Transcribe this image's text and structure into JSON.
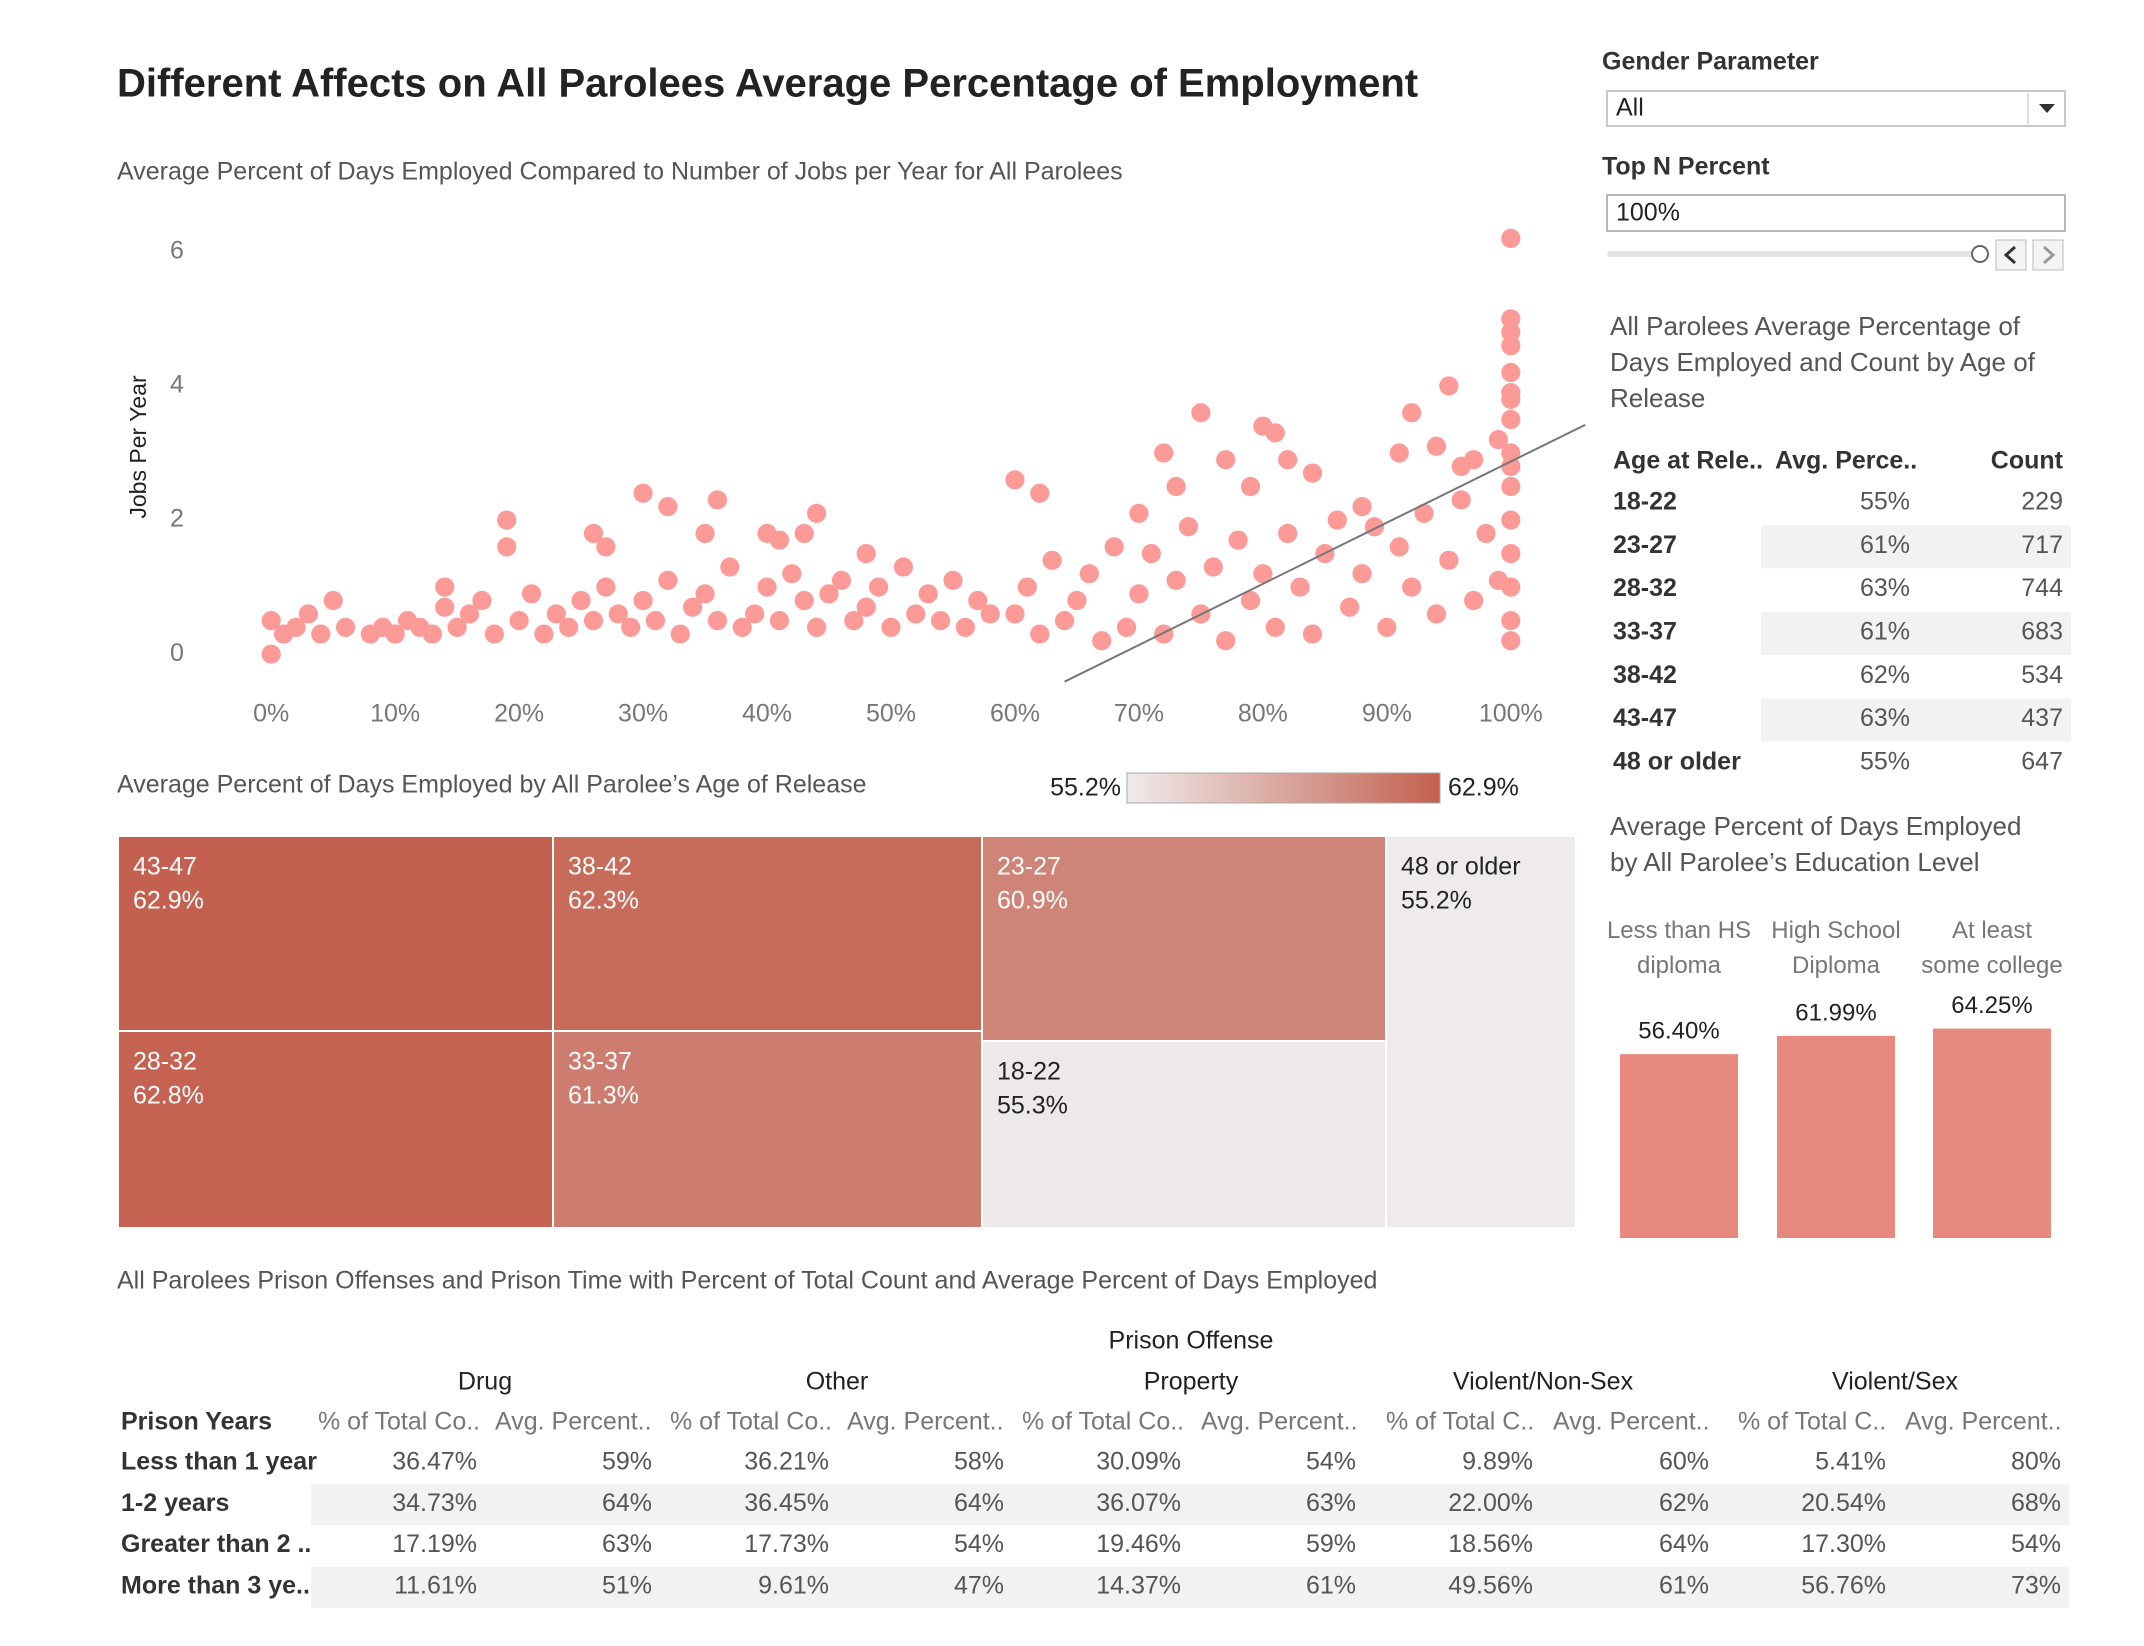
{
  "title": "Different Affects on All Parolees Average Percentage of Employment",
  "filters": {
    "gender": {
      "label": "Gender Parameter",
      "value": "All"
    },
    "top_n": {
      "label": "Top N Percent",
      "value": "100%"
    }
  },
  "chart_data": [
    {
      "type": "scatter",
      "title": "Average Percent of Days Employed Compared to Number of Jobs per Year for All Parolees",
      "ylabel": "Jobs Per Year",
      "color": "#fc9a97",
      "grid": false,
      "x": [
        0,
        0,
        1,
        2,
        3,
        4,
        5,
        6,
        8,
        9,
        10,
        11,
        12,
        13,
        14,
        14,
        15,
        16,
        17,
        18,
        20,
        21,
        22,
        23,
        24,
        25,
        26,
        27,
        28,
        29,
        30,
        31,
        32,
        33,
        34,
        35,
        36,
        37,
        38,
        39,
        40,
        41,
        42,
        43,
        44,
        45,
        46,
        47,
        48,
        49,
        50,
        51,
        52,
        53,
        54,
        55,
        56,
        57,
        58,
        19,
        19,
        26,
        27,
        30,
        32,
        36,
        35,
        40,
        41,
        43,
        44,
        48,
        60,
        62,
        70,
        72,
        73,
        75,
        77,
        79,
        80,
        81,
        82,
        84,
        88,
        91,
        92,
        94,
        95,
        96,
        99,
        97,
        60,
        61,
        62,
        63,
        64,
        65,
        66,
        67,
        68,
        69,
        70,
        71,
        72,
        73,
        74,
        75,
        76,
        77,
        78,
        79,
        80,
        81,
        82,
        83,
        84,
        85,
        86,
        87,
        88,
        89,
        90,
        91,
        92,
        93,
        94,
        95,
        96,
        97,
        98,
        99,
        100,
        100,
        100,
        100,
        100,
        100,
        100,
        100,
        100,
        100,
        100,
        100,
        100,
        100,
        100,
        100
      ],
      "values": [
        0.5,
        0.0,
        0.3,
        0.4,
        0.6,
        0.3,
        0.8,
        0.4,
        0.3,
        0.4,
        0.3,
        0.5,
        0.4,
        0.3,
        0.7,
        1.0,
        0.4,
        0.6,
        0.8,
        0.3,
        0.5,
        0.9,
        0.3,
        0.6,
        0.4,
        0.8,
        0.5,
        1.0,
        0.6,
        0.4,
        0.8,
        0.5,
        1.1,
        0.3,
        0.7,
        0.9,
        0.5,
        1.3,
        0.4,
        0.6,
        1.0,
        0.5,
        1.2,
        0.8,
        0.4,
        0.9,
        1.1,
        0.5,
        0.7,
        1.0,
        0.4,
        1.3,
        0.6,
        0.9,
        0.5,
        1.1,
        0.4,
        0.8,
        0.6,
        2.0,
        1.6,
        1.8,
        1.6,
        2.4,
        2.2,
        2.3,
        1.8,
        1.8,
        1.7,
        1.8,
        2.1,
        1.5,
        2.6,
        2.4,
        2.1,
        3.0,
        2.5,
        3.6,
        2.9,
        2.5,
        3.4,
        3.3,
        2.9,
        2.7,
        2.2,
        3.0,
        3.6,
        3.1,
        4.0,
        2.8,
        3.2,
        2.9,
        0.6,
        1.0,
        0.3,
        1.4,
        0.5,
        0.8,
        1.2,
        0.2,
        1.6,
        0.4,
        0.9,
        1.5,
        0.3,
        1.1,
        1.9,
        0.6,
        1.3,
        0.2,
        1.7,
        0.8,
        1.2,
        0.4,
        1.8,
        1.0,
        0.3,
        1.5,
        2.0,
        0.7,
        1.2,
        1.9,
        0.4,
        1.6,
        1.0,
        2.1,
        0.6,
        1.4,
        2.3,
        0.8,
        1.8,
        1.1,
        6.2,
        5.0,
        4.8,
        4.6,
        4.2,
        3.8,
        3.5,
        3.0,
        2.5,
        2.0,
        1.5,
        1.0,
        0.5,
        0.2,
        2.8,
        3.9
      ],
      "trend_line": {
        "x": [
          64,
          106
        ],
        "values": [
          -0.41,
          3.42
        ],
        "color": "#777777"
      },
      "xlim": [
        -3,
        103
      ],
      "xticks": [
        {
          "value": 0,
          "label": "0%"
        },
        {
          "value": 10,
          "label": "10%"
        },
        {
          "value": 20,
          "label": "20%"
        },
        {
          "value": 30,
          "label": "30%"
        },
        {
          "value": 40,
          "label": "40%"
        },
        {
          "value": 50,
          "label": "50%"
        },
        {
          "value": 60,
          "label": "60%"
        },
        {
          "value": 70,
          "label": "70%"
        },
        {
          "value": 80,
          "label": "80%"
        },
        {
          "value": 90,
          "label": "90%"
        },
        {
          "value": 100,
          "label": "100%"
        }
      ],
      "ylim": [
        -0.4,
        6.4
      ],
      "yticks": [
        0,
        2,
        4,
        6
      ]
    },
    {
      "type": "treemap",
      "title": "Average Percent of Days Employed by All Parolee’s Age of Release",
      "categories": [
        "43-47",
        "28-32",
        "38-42",
        "33-37",
        "23-27",
        "18-22",
        "48 or older"
      ],
      "values": [
        62.9,
        62.8,
        62.3,
        61.3,
        60.9,
        55.3,
        55.2
      ],
      "value_labels": [
        "62.9%",
        "62.8%",
        "62.3%",
        "61.3%",
        "60.9%",
        "55.3%",
        "55.2%"
      ],
      "color_range": [
        {
          "value": 55.2,
          "label": "55.2%"
        },
        {
          "value": 62.9,
          "label": "62.9%"
        }
      ],
      "colors": [
        "#efebeb",
        "#c4604f"
      ]
    },
    {
      "type": "bar",
      "title": "Average Percent of Days Employed\nby All Parolee’s Education Level",
      "categories": [
        "Less than HS\ndiploma",
        "High School\nDiploma",
        "At least\nsome college"
      ],
      "values": [
        56.4,
        61.99,
        64.25
      ],
      "value_labels": [
        "56.40%",
        "61.99%",
        "64.25%"
      ],
      "color": "#e8897d",
      "ylim": [
        0,
        100
      ]
    }
  ],
  "age_table": {
    "title": "All Parolees Average Percentage of\nDays Employed and Count by Age of\nRelease",
    "columns": [
      "Age at Rele..",
      "Avg. Perce..",
      "Count"
    ],
    "rows": [
      [
        "18-22",
        "55%",
        229
      ],
      [
        "23-27",
        "61%",
        717
      ],
      [
        "28-32",
        "63%",
        744
      ],
      [
        "33-37",
        "61%",
        683
      ],
      [
        "38-42",
        "62%",
        534
      ],
      [
        "43-47",
        "63%",
        437
      ],
      [
        "48 or older",
        "55%",
        647
      ]
    ]
  },
  "offense_table": {
    "title": "All Parolees Prison Offenses and Prison Time with Percent of Total Count and Average Percent of Days Employed",
    "group_title": "Prison Offense",
    "row_header": "Prison Years",
    "groups": [
      "Drug",
      "Other",
      "Property",
      "Violent/Non-Sex",
      "Violent/Sex"
    ],
    "columns": [
      "% of Total Co..",
      "Avg. Percent..",
      "% of Total Co..",
      "Avg. Percent..",
      "% of Total Co..",
      "Avg. Percent..",
      "% of Total C..",
      "Avg. Percent..",
      "% of Total C..",
      "Avg. Percent.."
    ],
    "rows": [
      {
        "label": "Less than 1 year",
        "cells": [
          "36.47%",
          "59%",
          "36.21%",
          "58%",
          "30.09%",
          "54%",
          "9.89%",
          "60%",
          "5.41%",
          "80%"
        ]
      },
      {
        "label": "1-2 years",
        "cells": [
          "34.73%",
          "64%",
          "36.45%",
          "64%",
          "36.07%",
          "63%",
          "22.00%",
          "62%",
          "20.54%",
          "68%"
        ]
      },
      {
        "label": "Greater than 2 ..",
        "cells": [
          "17.19%",
          "63%",
          "17.73%",
          "54%",
          "19.46%",
          "59%",
          "18.56%",
          "64%",
          "17.30%",
          "54%"
        ]
      },
      {
        "label": "More than 3 ye..",
        "cells": [
          "11.61%",
          "51%",
          "9.61%",
          "47%",
          "14.37%",
          "61%",
          "49.56%",
          "61%",
          "56.76%",
          "73%"
        ]
      }
    ]
  }
}
